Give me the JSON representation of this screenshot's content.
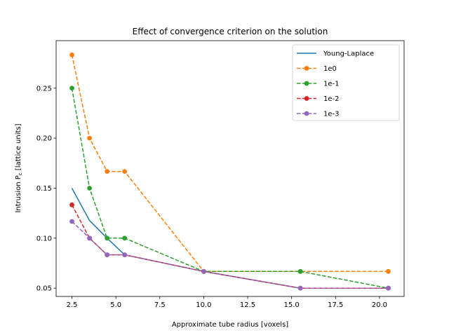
{
  "chart_data": {
    "type": "line",
    "title": "Effect of convergence criterion on the solution",
    "xlabel": "Approximate tube radius [voxels]",
    "ylabel_main": "Intrusion P",
    "ylabel_sub": "c",
    "ylabel_tail": " [lattice units]",
    "xlim": [
      1.6,
      21.4
    ],
    "ylim": [
      0.0417,
      0.2975
    ],
    "xticks": [
      "2.5",
      "5.0",
      "7.5",
      "10.0",
      "12.5",
      "15.0",
      "17.5",
      "20.0"
    ],
    "xtick_values": [
      2.5,
      5.0,
      7.5,
      10.0,
      12.5,
      15.0,
      17.5,
      20.0
    ],
    "yticks": [
      "0.05",
      "0.10",
      "0.15",
      "0.20",
      "0.25"
    ],
    "ytick_values": [
      0.05,
      0.1,
      0.15,
      0.2,
      0.25
    ],
    "legend_position": "top-right",
    "series": [
      {
        "name": "Young-Laplace",
        "style": "solid",
        "marker": false,
        "color": "#1f77b4",
        "x": [
          2.5,
          3.5,
          4.5,
          5.5,
          10.0,
          15.5,
          20.5
        ],
        "y": [
          0.15,
          0.1176,
          0.1,
          0.0833,
          0.0667,
          0.05,
          0.05
        ]
      },
      {
        "name": "1e0",
        "style": "dashed",
        "marker": true,
        "color": "#ff7f0e",
        "x": [
          2.5,
          3.5,
          4.5,
          5.5,
          10.0,
          15.5,
          20.5
        ],
        "y": [
          0.2833,
          0.2,
          0.1667,
          0.1667,
          0.0667,
          0.0667,
          0.0667
        ]
      },
      {
        "name": "1e-1",
        "style": "dashed",
        "marker": true,
        "color": "#2ca02c",
        "x": [
          2.5,
          3.5,
          4.5,
          5.5,
          10.0,
          15.5,
          20.5
        ],
        "y": [
          0.25,
          0.15,
          0.1,
          0.1,
          0.0667,
          0.0667,
          0.05
        ]
      },
      {
        "name": "1e-2",
        "style": "dashed",
        "marker": true,
        "color": "#d62728",
        "x": [
          2.5,
          3.5,
          4.5,
          5.5,
          10.0,
          15.5,
          20.5
        ],
        "y": [
          0.1333,
          0.1,
          0.0833,
          0.0833,
          0.0667,
          0.05,
          0.05
        ]
      },
      {
        "name": "1e-3",
        "style": "dashed",
        "marker": true,
        "color": "#9467bd",
        "x": [
          2.5,
          3.5,
          4.5,
          5.5,
          10.0,
          15.5,
          20.5
        ],
        "y": [
          0.1167,
          0.1,
          0.0833,
          0.0833,
          0.0667,
          0.05,
          0.05
        ]
      }
    ]
  }
}
